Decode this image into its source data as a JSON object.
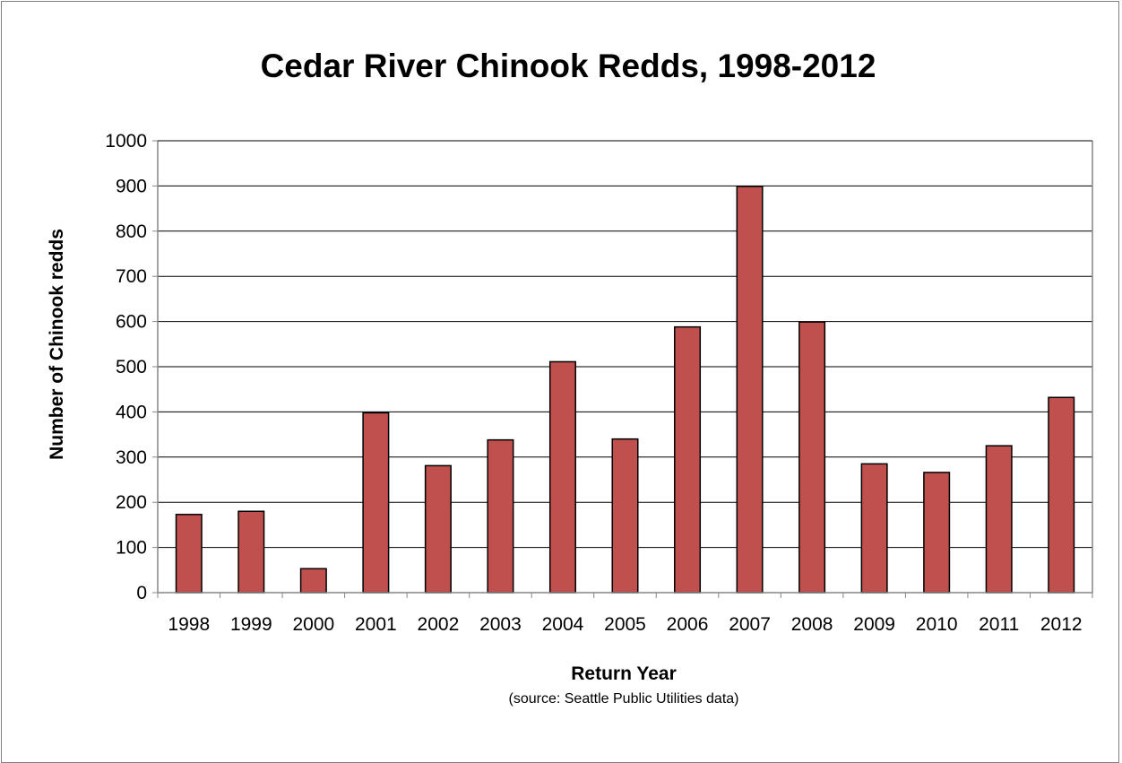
{
  "chart_data": {
    "type": "bar",
    "title": "Cedar River Chinook Redds, 1998-2012",
    "xlabel": "Return Year",
    "ylabel": "Number of Chinook redds",
    "source_note": "(source: Seattle Public Utilities data)",
    "categories": [
      "1998",
      "1999",
      "2000",
      "2001",
      "2002",
      "2003",
      "2004",
      "2005",
      "2006",
      "2007",
      "2008",
      "2009",
      "2010",
      "2011",
      "2012"
    ],
    "values": [
      173,
      180,
      53,
      398,
      281,
      338,
      511,
      340,
      588,
      899,
      599,
      285,
      266,
      325,
      432
    ],
    "ylim": [
      0,
      1000
    ],
    "yticks": [
      "0",
      "100",
      "200",
      "300",
      "400",
      "500",
      "600",
      "700",
      "800",
      "900",
      "1000"
    ],
    "grid": true,
    "legend": "none",
    "colors": {
      "bar_fill": "#c0504d",
      "bar_stroke": "#000000",
      "grid": "#000000",
      "axis": "#868686"
    }
  }
}
